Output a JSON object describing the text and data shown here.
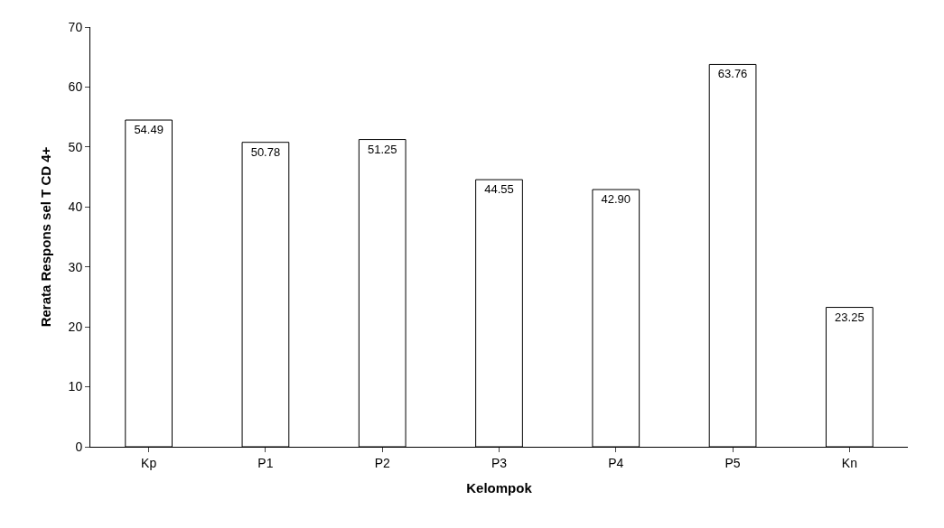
{
  "chart_data": {
    "type": "bar",
    "xlabel": "Kelompok",
    "ylabel": "Rerata Respons sel T CD 4+",
    "categories": [
      "Kp",
      "P1",
      "P2",
      "P3",
      "P4",
      "P5",
      "Kn"
    ],
    "values": [
      54.49,
      50.78,
      51.25,
      44.55,
      42.9,
      63.76,
      23.25
    ],
    "value_labels": [
      "54.49",
      "50.78",
      "51.25",
      "44.55",
      "42.90",
      "63.76",
      "23.25"
    ],
    "color": "#ffffff",
    "ylim": [
      0,
      70
    ],
    "yticks": [
      0,
      10,
      20,
      30,
      40,
      50,
      60,
      70
    ]
  }
}
